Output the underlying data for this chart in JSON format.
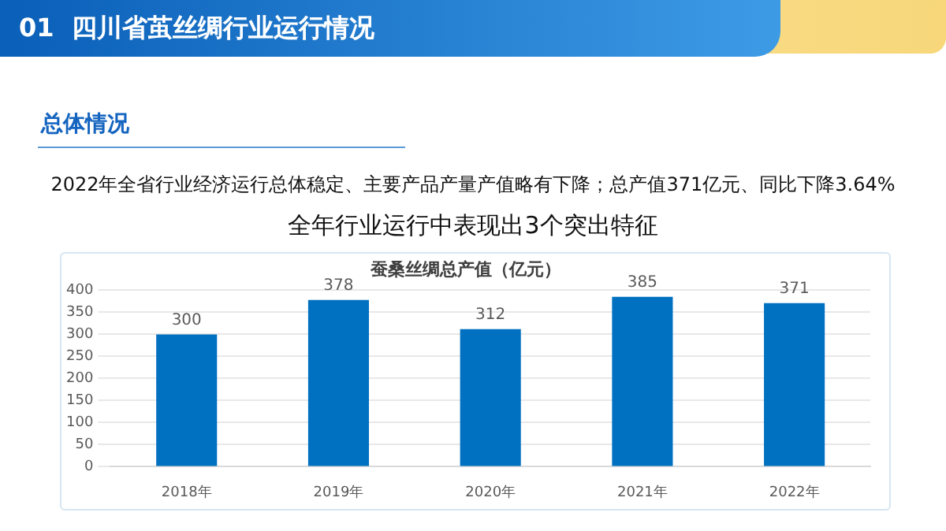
{
  "chart_data": {
    "type": "bar",
    "title": "蚕桑丝绸总产值（亿元）",
    "categories": [
      "2018年",
      "2019年",
      "2020年",
      "2021年",
      "2022年"
    ],
    "values": [
      300,
      378,
      312,
      385,
      371
    ],
    "color": "#0070c0",
    "ylim": [
      0,
      400
    ],
    "yticks": [
      0,
      50,
      100,
      150,
      200,
      250,
      300,
      350,
      400
    ],
    "grid": "y",
    "data_labels": true,
    "annotations": [
      "01  四川省茧丝绸行业运行情况",
      "总体情况",
      "2022年全省行业经济运行总体稳定、主要产品产量产值略有下降；总产值371亿元、同比下降3.64%",
      "全年行业运行中表现出3个突出特征"
    ]
  }
}
